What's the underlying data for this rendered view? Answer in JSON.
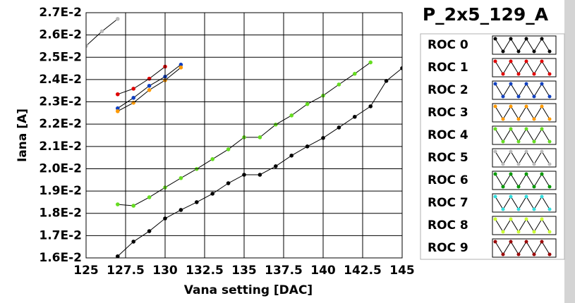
{
  "chart_data": {
    "type": "line",
    "title": "P_2x5_129_A",
    "x_label": "Vana setting [DAC]",
    "y_label": "Iana [A]",
    "xlim": [
      125,
      145
    ],
    "xticks": [
      125,
      127.5,
      130,
      132.5,
      135,
      137.5,
      140,
      142.5,
      145
    ],
    "ylim": [
      0.016,
      0.027
    ],
    "yticks": [
      {
        "value": 0.016,
        "label": "1.6E-2"
      },
      {
        "value": 0.017,
        "label": "1.7E-2"
      },
      {
        "value": 0.018,
        "label": "1.8E-2"
      },
      {
        "value": 0.019,
        "label": "1.9E-2"
      },
      {
        "value": 0.02,
        "label": "2.0E-2"
      },
      {
        "value": 0.021,
        "label": "2.1E-2"
      },
      {
        "value": 0.022,
        "label": "2.2E-2"
      },
      {
        "value": 0.023,
        "label": "2.3E-2"
      },
      {
        "value": 0.024,
        "label": "2.4E-2"
      },
      {
        "value": 0.025,
        "label": "2.5E-2"
      },
      {
        "value": 0.026,
        "label": "2.6E-2"
      },
      {
        "value": 0.027,
        "label": "2.7E-2"
      }
    ],
    "grid": true,
    "series": [
      {
        "name": "ROC 0",
        "color": "#000000",
        "x": [
          127,
          128,
          129,
          130,
          131,
          132,
          133,
          134,
          135,
          136,
          137,
          138,
          139,
          140,
          141,
          142,
          143,
          144,
          145
        ],
        "values": [
          0.01607,
          0.01673,
          0.0172,
          0.01777,
          0.01815,
          0.0185,
          0.01888,
          0.01935,
          0.01973,
          0.01973,
          0.02011,
          0.02059,
          0.021,
          0.02138,
          0.02185,
          0.02233,
          0.0228,
          0.02394,
          0.02451
        ]
      },
      {
        "name": "ROC 1",
        "color": "#e00000",
        "x": [
          127,
          128,
          129,
          130
        ],
        "values": [
          0.02334,
          0.02359,
          0.02404,
          0.02458
        ]
      },
      {
        "name": "ROC 2",
        "color": "#1040c0",
        "x": [
          127,
          128,
          129,
          130,
          131
        ],
        "values": [
          0.02271,
          0.02318,
          0.02372,
          0.02413,
          0.02467
        ]
      },
      {
        "name": "ROC 3",
        "color": "#ff9900",
        "x": [
          127,
          128,
          129,
          130,
          131
        ],
        "values": [
          0.02258,
          0.02296,
          0.02353,
          0.02397,
          0.02454
        ]
      },
      {
        "name": "ROC 4",
        "color": "#66dd22",
        "x": [
          127,
          128,
          129,
          130,
          131,
          132,
          133,
          134,
          135,
          136,
          137,
          138,
          139,
          140,
          141,
          142,
          143
        ],
        "values": [
          0.0184,
          0.01834,
          0.01872,
          0.01916,
          0.01958,
          0.01999,
          0.02043,
          0.02087,
          0.02141,
          0.02141,
          0.02198,
          0.02239,
          0.0229,
          0.02328,
          0.02378,
          0.02426,
          0.02477
        ]
      },
      {
        "name": "ROC 5",
        "color": "#bbbbbb",
        "x": [
          125,
          126,
          127
        ],
        "values": [
          0.02551,
          0.02616,
          0.02672
        ]
      },
      {
        "name": "ROC 6",
        "color": "#009900",
        "x": [],
        "values": []
      },
      {
        "name": "ROC 7",
        "color": "#33dddd",
        "x": [],
        "values": []
      },
      {
        "name": "ROC 8",
        "color": "#ccff33",
        "x": [],
        "values": []
      },
      {
        "name": "ROC 9",
        "color": "#990000",
        "x": [],
        "values": []
      }
    ]
  }
}
